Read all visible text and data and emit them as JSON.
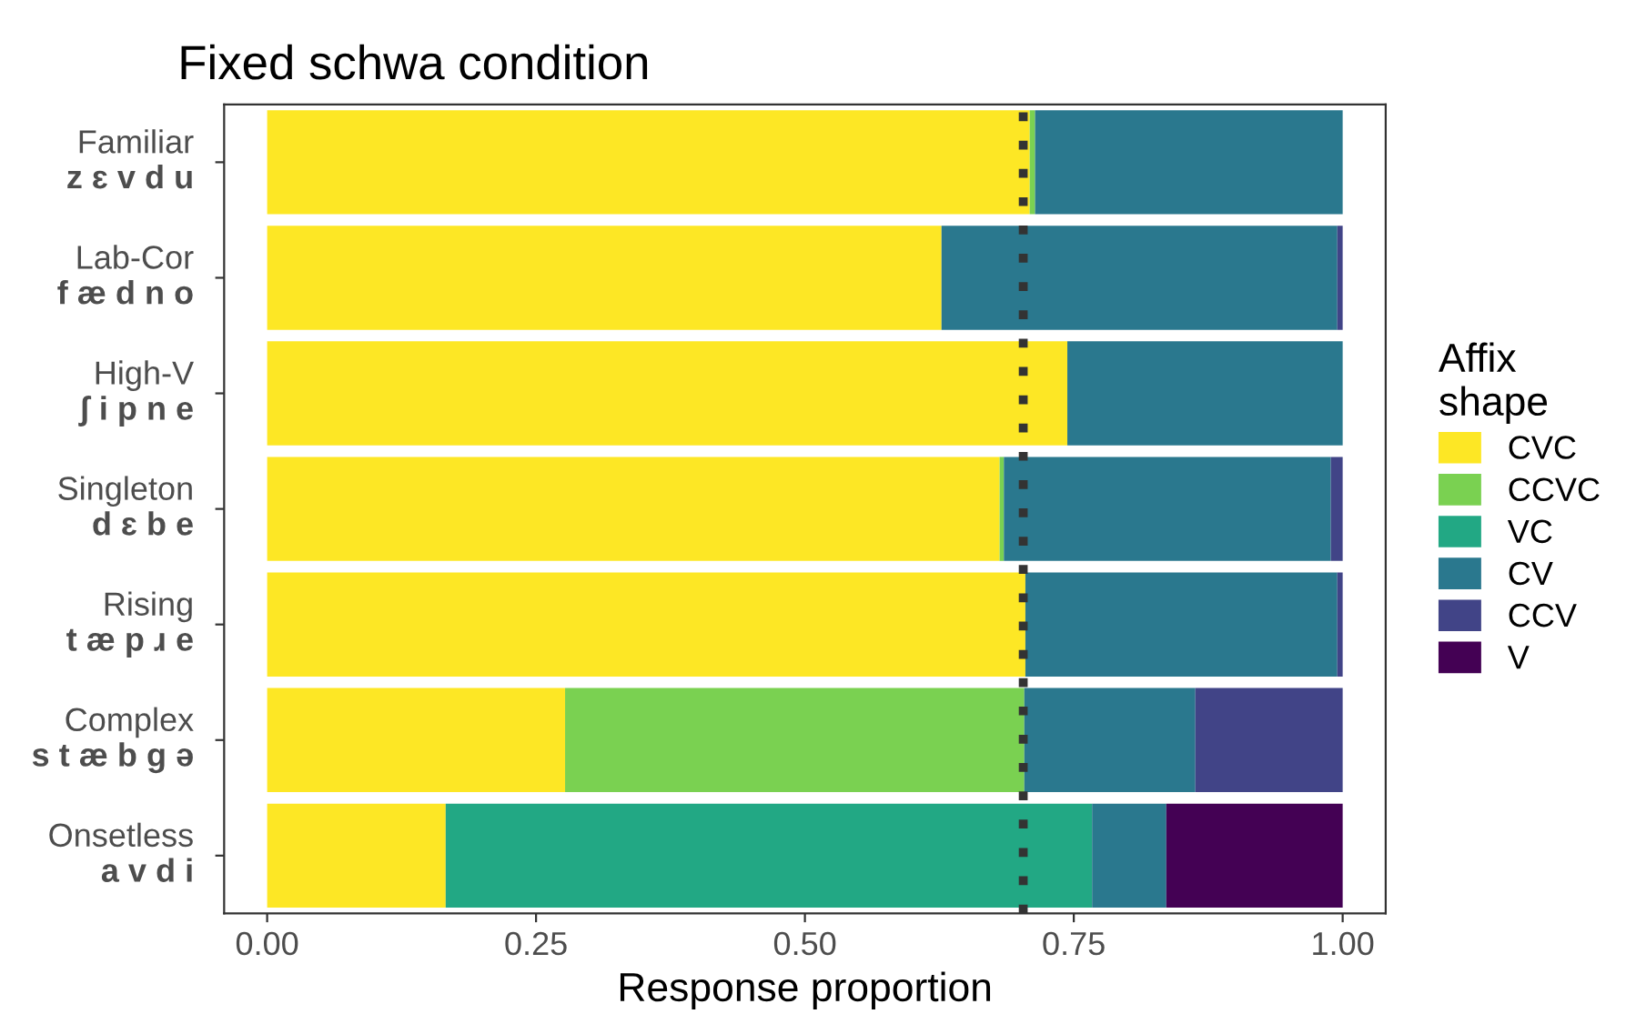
{
  "chart_data": {
    "type": "bar",
    "orientation": "horizontal",
    "stacked": true,
    "title": "Fixed schwa condition",
    "xlabel": "Response proportion",
    "legend_title": "Affix\nshape",
    "legend": "right",
    "grid": false,
    "categories": [
      "Familiar\nz ɛ v d u",
      "Lab-Cor\nf æ d n o",
      "High-V\nʃ i p n e",
      "Singleton\nd ɛ b e",
      "Rising\nt æ p ɹ e",
      "Complex\ns t æ b g ə",
      "Onsetless\na v d i"
    ],
    "xlim": [
      -0.04,
      1.04
    ],
    "xticks": [
      {
        "value": 0,
        "label": "0.00"
      },
      {
        "value": 0.25,
        "label": "0.25"
      },
      {
        "value": 0.5,
        "label": "0.50"
      },
      {
        "value": 0.75,
        "label": "0.75"
      },
      {
        "value": 1,
        "label": "1.00"
      }
    ],
    "series": [
      {
        "name": "CVC",
        "color": "#fde725",
        "values": [
          0.709,
          0.627,
          0.744,
          0.681,
          0.705,
          0.277,
          0.166
        ]
      },
      {
        "name": "CCVC",
        "color": "#7ad151",
        "values": [
          0.005,
          null,
          null,
          0.004,
          null,
          0.427,
          null
        ]
      },
      {
        "name": "VC",
        "color": "#22a884",
        "values": [
          null,
          null,
          null,
          null,
          null,
          null,
          0.601
        ]
      },
      {
        "name": "CV",
        "color": "#2a788e",
        "values": [
          0.286,
          0.368,
          0.256,
          0.304,
          0.29,
          0.159,
          0.069
        ]
      },
      {
        "name": "CCV",
        "color": "#414487",
        "values": [
          null,
          0.005,
          null,
          0.011,
          0.005,
          0.137,
          null
        ]
      },
      {
        "name": "V",
        "color": "#440154",
        "values": [
          null,
          null,
          null,
          null,
          null,
          null,
          0.164
        ]
      }
    ],
    "ref_lines": [
      {
        "axis": "x",
        "value": 0.703,
        "color": "#333333",
        "line_style": "dotted"
      }
    ]
  }
}
